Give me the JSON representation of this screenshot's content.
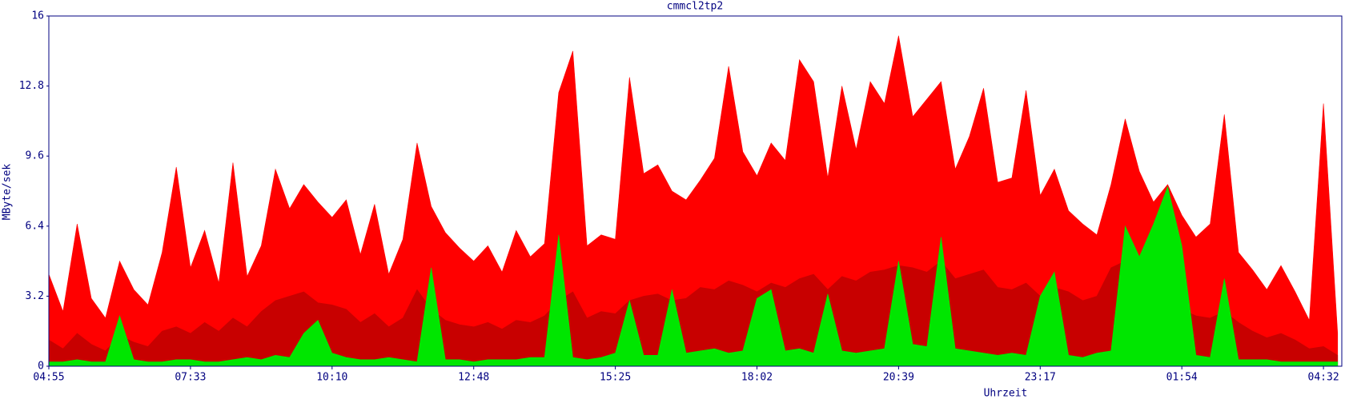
{
  "chart_data": {
    "type": "area",
    "title": "cmmcl2tp2",
    "y_label": "MByte/sek",
    "x_label": "Uhrzeit",
    "categories": [
      "04:55",
      null,
      null,
      null,
      null,
      null,
      null,
      null,
      null,
      null,
      "07:33",
      null,
      null,
      null,
      null,
      null,
      null,
      null,
      null,
      null,
      "10:10",
      null,
      null,
      null,
      null,
      null,
      null,
      null,
      null,
      null,
      "12:48",
      null,
      null,
      null,
      null,
      null,
      null,
      null,
      null,
      null,
      "15:25",
      null,
      null,
      null,
      null,
      null,
      null,
      null,
      null,
      null,
      "18:02",
      null,
      null,
      null,
      null,
      null,
      null,
      null,
      null,
      null,
      "20:39",
      null,
      null,
      null,
      null,
      null,
      null,
      null,
      null,
      null,
      "23:17",
      null,
      null,
      null,
      null,
      null,
      null,
      null,
      null,
      null,
      "01:54",
      null,
      null,
      null,
      null,
      null,
      null,
      null,
      null,
      null,
      "04:32",
      null
    ],
    "series": [
      {
        "color": "#ff0000",
        "values": [
          4.2,
          2.5,
          6.5,
          3.1,
          2.2,
          4.8,
          3.5,
          2.8,
          5.2,
          9.1,
          4.5,
          6.2,
          3.8,
          9.3,
          4.1,
          5.5,
          9.0,
          7.2,
          8.3,
          7.5,
          6.8,
          7.6,
          5.1,
          7.4,
          4.2,
          5.8,
          10.2,
          7.3,
          6.1,
          5.4,
          4.8,
          5.5,
          4.3,
          6.2,
          5.0,
          5.6,
          12.5,
          14.4,
          5.5,
          6.0,
          5.8,
          13.2,
          8.8,
          9.2,
          8.0,
          7.6,
          8.5,
          9.5,
          13.7,
          9.8,
          8.7,
          10.2,
          9.4,
          14.0,
          13.0,
          8.6,
          12.8,
          9.9,
          13.0,
          12.0,
          15.1,
          11.4,
          12.2,
          13.0,
          9.0,
          10.5,
          12.7,
          8.4,
          8.6,
          12.6,
          7.8,
          9.0,
          7.1,
          6.5,
          6.0,
          8.3,
          11.3,
          8.9,
          7.5,
          8.3,
          6.9,
          5.9,
          6.5,
          11.5,
          5.2,
          4.4,
          3.5,
          4.6,
          3.4,
          2.1,
          12.0,
          1.5
        ]
      },
      {
        "color": "#c80000",
        "values": [
          1.2,
          0.8,
          1.5,
          1.0,
          0.7,
          1.4,
          1.1,
          0.9,
          1.6,
          1.8,
          1.5,
          2.0,
          1.6,
          2.2,
          1.8,
          2.5,
          3.0,
          3.2,
          3.4,
          2.9,
          2.8,
          2.6,
          2.0,
          2.4,
          1.8,
          2.2,
          3.5,
          2.6,
          2.1,
          1.9,
          1.8,
          2.0,
          1.7,
          2.1,
          2.0,
          2.3,
          3.0,
          3.4,
          2.2,
          2.5,
          2.4,
          3.0,
          3.2,
          3.3,
          3.0,
          3.1,
          3.6,
          3.5,
          3.9,
          3.7,
          3.4,
          3.8,
          3.6,
          4.0,
          4.2,
          3.5,
          4.1,
          3.9,
          4.3,
          4.4,
          4.6,
          4.5,
          4.3,
          4.8,
          4.0,
          4.2,
          4.4,
          3.6,
          3.5,
          3.8,
          3.2,
          3.6,
          3.4,
          3.0,
          3.2,
          4.5,
          4.8,
          3.6,
          3.0,
          2.8,
          2.6,
          2.3,
          2.2,
          2.5,
          2.0,
          1.6,
          1.3,
          1.5,
          1.2,
          0.8,
          0.9,
          0.5
        ]
      },
      {
        "color": "#00e600",
        "values": [
          0.2,
          0.2,
          0.3,
          0.2,
          0.2,
          2.3,
          0.3,
          0.2,
          0.2,
          0.3,
          0.3,
          0.2,
          0.2,
          0.3,
          0.4,
          0.3,
          0.5,
          0.4,
          1.5,
          2.1,
          0.6,
          0.4,
          0.3,
          0.3,
          0.4,
          0.3,
          0.2,
          4.5,
          0.3,
          0.3,
          0.2,
          0.3,
          0.3,
          0.3,
          0.4,
          0.4,
          6.0,
          0.4,
          0.3,
          0.4,
          0.6,
          3.0,
          0.5,
          0.5,
          3.5,
          0.6,
          0.7,
          0.8,
          0.6,
          0.7,
          3.1,
          3.5,
          0.7,
          0.8,
          0.6,
          3.3,
          0.7,
          0.6,
          0.7,
          0.8,
          4.8,
          1.0,
          0.9,
          5.9,
          0.8,
          0.7,
          0.6,
          0.5,
          0.6,
          0.5,
          3.2,
          4.3,
          0.5,
          0.4,
          0.6,
          0.7,
          6.4,
          5.0,
          6.5,
          8.2,
          5.5,
          0.5,
          0.4,
          4.0,
          0.3,
          0.3,
          0.3,
          0.2,
          0.2,
          0.2,
          0.2,
          0.2
        ]
      }
    ],
    "ylim": [
      0,
      16
    ],
    "yticks": [
      0,
      3.2,
      6.4,
      9.6,
      12.8,
      16
    ],
    "axis_color": "#000080"
  }
}
